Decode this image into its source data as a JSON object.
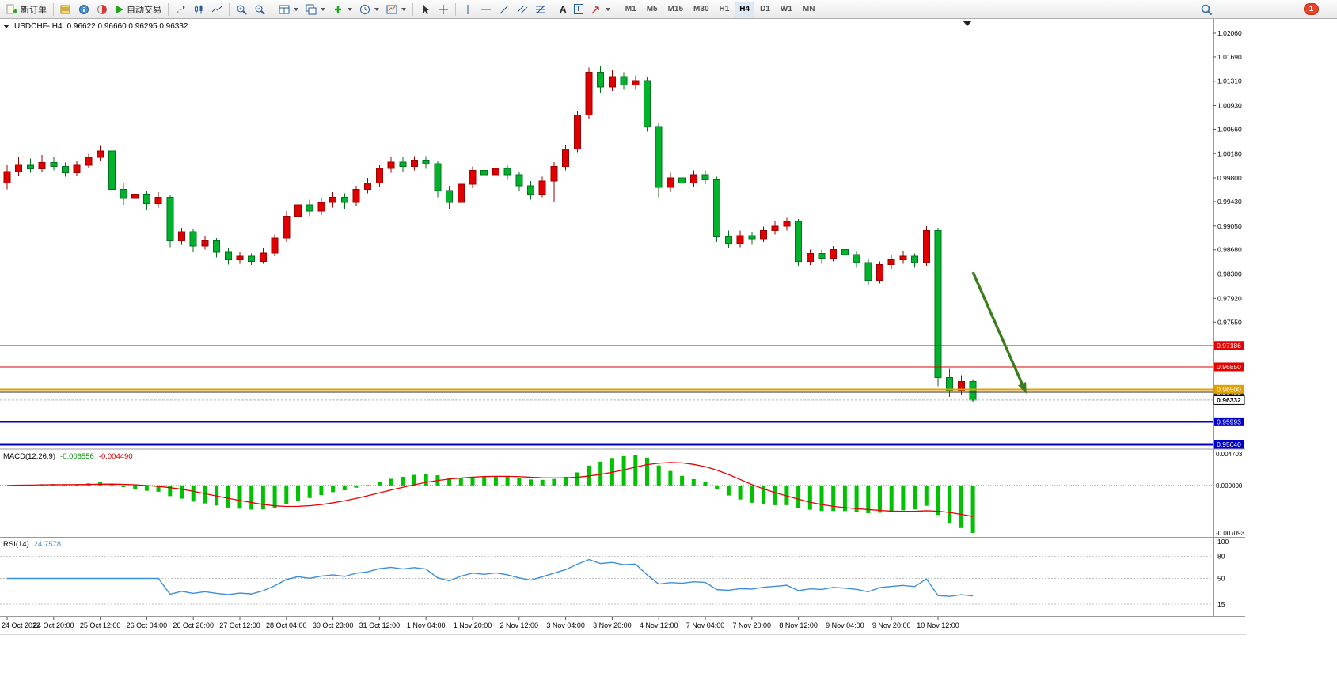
{
  "window": {
    "badge_count": "1"
  },
  "toolbar": {
    "new_order": "新订单",
    "autotrading": "自动交易",
    "text_tool": "A",
    "label_tool": "T",
    "timeframes": [
      "M1",
      "M5",
      "M15",
      "M30",
      "H1",
      "H4",
      "D1",
      "W1",
      "MN"
    ],
    "active_timeframe": "H4"
  },
  "chart": {
    "symbol_period": "USDCHF-,H4",
    "ohlc_text": "0.96622 0.96660 0.96295 0.96332",
    "macd_name": "MACD(12,26,9)",
    "macd_value": "-0.006556",
    "macd_signal_value": "-0.004490",
    "rsi_name": "RSI(14)",
    "rsi_value": "24.7578"
  },
  "chart_data": [
    {
      "type": "candlestick",
      "symbol": "USDCHF-",
      "period": "H4",
      "current_ohlc": {
        "open": 0.96622,
        "high": 0.9666,
        "low": 0.96295,
        "close": 0.96332
      },
      "up_color": "#e00000",
      "down_color": "#00b22c",
      "ylim": [
        0.95578,
        1.02282
      ],
      "price_axis_labels": [
        "1.02060",
        "1.01690",
        "1.01310",
        "1.00930",
        "1.00560",
        "1.00180",
        "0.99800",
        "0.99430",
        "0.99050",
        "0.98680",
        "0.98300",
        "0.97920",
        "0.97550"
      ],
      "time_axis_labels": [
        "24 Oct 2022",
        "24 Oct 20:00",
        "25 Oct 12:00",
        "26 Oct 04:00",
        "26 Oct 20:00",
        "27 Oct 12:00",
        "28 Oct 04:00",
        "30 Oct 23:00",
        "31 Oct 12:00",
        "1 Nov 04:00",
        "1 Nov 20:00",
        "2 Nov 12:00",
        "3 Nov 04:00",
        "3 Nov 20:00",
        "4 Nov 12:00",
        "7 Nov 04:00",
        "7 Nov 20:00",
        "8 Nov 12:00",
        "9 Nov 04:00",
        "9 Nov 20:00",
        "10 Nov 12:00"
      ],
      "candles_per_label": 4,
      "hlines": [
        {
          "price": 0.97186,
          "label": "0.97186",
          "color": "#e60000",
          "width": 1
        },
        {
          "price": 0.9685,
          "label": "0.96850",
          "color": "#e60000",
          "width": 1
        },
        {
          "price": 0.96455,
          "label": "0.96455",
          "color": "#2b2b2b",
          "width": 1
        },
        {
          "price": 0.965,
          "label": "0.96500",
          "color": "#dfa000",
          "width": 2
        },
        {
          "price": 0.95993,
          "label": "0.95993",
          "color": "#0000c8",
          "width": 2
        },
        {
          "price": 0.9564,
          "label": "0.95640",
          "color": "#0000c8",
          "width": 3
        }
      ],
      "current_price": 0.96332,
      "current_price_label": "0.96332",
      "trend_arrow": {
        "from_index": 83,
        "from_price": 0.9833,
        "to_index": 87.6,
        "to_price": 0.9643,
        "color": "#3a7d1e"
      },
      "candles": [
        [
          0.9972,
          1.0,
          0.9962,
          0.999
        ],
        [
          0.999,
          1.0012,
          0.9984,
          1.0
        ],
        [
          1.0,
          1.001,
          0.9988,
          0.9994
        ],
        [
          0.9994,
          1.0016,
          0.999,
          1.0004
        ],
        [
          1.0004,
          1.0012,
          0.9992,
          0.9998
        ],
        [
          0.9998,
          1.0004,
          0.9982,
          0.9988
        ],
        [
          0.9988,
          1.0006,
          0.9984,
          1.0
        ],
        [
          1.0,
          1.0018,
          0.9996,
          1.0012
        ],
        [
          1.0012,
          1.003,
          1.0006,
          1.0022
        ],
        [
          1.0022,
          1.0026,
          0.9952,
          0.9962
        ],
        [
          0.9962,
          0.9972,
          0.9938,
          0.9948
        ],
        [
          0.9948,
          0.9966,
          0.9942,
          0.9955
        ],
        [
          0.9955,
          0.996,
          0.993,
          0.994
        ],
        [
          0.994,
          0.9958,
          0.9934,
          0.995
        ],
        [
          0.995,
          0.9954,
          0.9872,
          0.9882
        ],
        [
          0.9882,
          0.9902,
          0.9876,
          0.9896
        ],
        [
          0.9896,
          0.99,
          0.9864,
          0.9874
        ],
        [
          0.9874,
          0.989,
          0.9868,
          0.9882
        ],
        [
          0.9882,
          0.9886,
          0.9856,
          0.9864
        ],
        [
          0.9864,
          0.987,
          0.9845,
          0.9852
        ],
        [
          0.9852,
          0.9864,
          0.9846,
          0.9858
        ],
        [
          0.9858,
          0.9862,
          0.9844,
          0.985
        ],
        [
          0.985,
          0.987,
          0.9846,
          0.9863
        ],
        [
          0.9863,
          0.9892,
          0.9858,
          0.9886
        ],
        [
          0.9886,
          0.9928,
          0.988,
          0.992
        ],
        [
          0.992,
          0.9944,
          0.9914,
          0.9938
        ],
        [
          0.9938,
          0.9946,
          0.992,
          0.9928
        ],
        [
          0.9928,
          0.9948,
          0.9922,
          0.9942
        ],
        [
          0.9942,
          0.9958,
          0.9934,
          0.995
        ],
        [
          0.995,
          0.9956,
          0.9932,
          0.9942
        ],
        [
          0.9942,
          0.9968,
          0.9936,
          0.9962
        ],
        [
          0.9962,
          0.998,
          0.9956,
          0.9972
        ],
        [
          0.9972,
          1.0,
          0.9966,
          0.9995
        ],
        [
          0.9995,
          1.0012,
          0.9988,
          1.0005
        ],
        [
          1.0005,
          1.0012,
          0.999,
          0.9998
        ],
        [
          0.9998,
          1.0014,
          0.9992,
          1.0008
        ],
        [
          1.0008,
          1.0014,
          0.9994,
          1.0002
        ],
        [
          1.0002,
          1.0006,
          0.995,
          0.996
        ],
        [
          0.996,
          0.9968,
          0.9932,
          0.9942
        ],
        [
          0.9942,
          0.9976,
          0.9936,
          0.997
        ],
        [
          0.997,
          0.9998,
          0.9964,
          0.9992
        ],
        [
          0.9992,
          1.0,
          0.9978,
          0.9985
        ],
        [
          0.9985,
          1.0002,
          0.998,
          0.9995
        ],
        [
          0.9995,
          1.0,
          0.9978,
          0.9985
        ],
        [
          0.9985,
          0.999,
          0.996,
          0.9968
        ],
        [
          0.9968,
          0.9975,
          0.9946,
          0.9955
        ],
        [
          0.9955,
          0.9982,
          0.995,
          0.9975
        ],
        [
          0.9975,
          1.0005,
          0.9942,
          0.9998
        ],
        [
          0.9998,
          1.0032,
          0.9992,
          1.0025
        ],
        [
          1.0025,
          1.0085,
          1.002,
          1.0078
        ],
        [
          1.0078,
          1.0152,
          1.0072,
          1.0145
        ],
        [
          1.0145,
          1.0155,
          1.0112,
          1.0122
        ],
        [
          1.0122,
          1.0148,
          1.0116,
          1.0138
        ],
        [
          1.0138,
          1.0145,
          1.0118,
          1.0125
        ],
        [
          1.0125,
          1.014,
          1.0118,
          1.0132
        ],
        [
          1.0132,
          1.0138,
          1.0052,
          1.006
        ],
        [
          1.006,
          1.0066,
          0.995,
          0.9965
        ],
        [
          0.9965,
          0.9988,
          0.9958,
          0.998
        ],
        [
          0.998,
          0.999,
          0.9964,
          0.9972
        ],
        [
          0.9972,
          0.9992,
          0.9966,
          0.9985
        ],
        [
          0.9985,
          0.9992,
          0.997,
          0.9978
        ],
        [
          0.9978,
          0.9982,
          0.988,
          0.9888
        ],
        [
          0.9888,
          0.9898,
          0.987,
          0.9878
        ],
        [
          0.9878,
          0.9898,
          0.9872,
          0.989
        ],
        [
          0.989,
          0.9896,
          0.9876,
          0.9885
        ],
        [
          0.9885,
          0.9904,
          0.988,
          0.9898
        ],
        [
          0.9898,
          0.9912,
          0.9892,
          0.9905
        ],
        [
          0.9905,
          0.9918,
          0.9898,
          0.9912
        ],
        [
          0.9912,
          0.9916,
          0.9842,
          0.985
        ],
        [
          0.985,
          0.9868,
          0.9844,
          0.9862
        ],
        [
          0.9862,
          0.9868,
          0.9846,
          0.9855
        ],
        [
          0.9855,
          0.9874,
          0.985,
          0.9868
        ],
        [
          0.9868,
          0.9874,
          0.9852,
          0.986
        ],
        [
          0.986,
          0.9866,
          0.984,
          0.9848
        ],
        [
          0.9848,
          0.9854,
          0.9812,
          0.982
        ],
        [
          0.982,
          0.985,
          0.9815,
          0.9845
        ],
        [
          0.9845,
          0.986,
          0.9838,
          0.9852
        ],
        [
          0.9852,
          0.9865,
          0.9846,
          0.9858
        ],
        [
          0.9858,
          0.9862,
          0.984,
          0.9848
        ],
        [
          0.9848,
          0.9905,
          0.9842,
          0.9898
        ],
        [
          0.9898,
          0.9902,
          0.9655,
          0.9668
        ],
        [
          0.9668,
          0.9682,
          0.9638,
          0.9648
        ],
        [
          0.9648,
          0.9672,
          0.9642,
          0.9662
        ],
        [
          0.96622,
          0.9666,
          0.96295,
          0.96332
        ]
      ]
    },
    {
      "type": "macd",
      "label": "MACD(12,26,9)",
      "fast": 12,
      "slow": 26,
      "signal": 9,
      "current_macd": -0.006556,
      "current_signal": -0.00449,
      "ylim": [
        -0.007093,
        0.004703
      ],
      "scale_labels": [
        {
          "v": 0.004703,
          "t": "0.004703"
        },
        {
          "v": 0,
          "t": "0.000000"
        },
        {
          "v": -0.007093,
          "t": "-0.007093"
        }
      ],
      "histogram_color": "#00c200",
      "signal_color": "#e80000"
    },
    {
      "type": "rsi",
      "label": "RSI(14)",
      "period": 14,
      "current": 24.7578,
      "ylim": [
        0,
        100
      ],
      "levels": [
        80,
        50,
        15
      ],
      "scale_labels": [
        {
          "v": 100,
          "t": "100"
        },
        {
          "v": 80,
          "t": "80"
        },
        {
          "v": 50,
          "t": "50"
        },
        {
          "v": 15,
          "t": "15"
        }
      ],
      "line_color": "#3c8fd9"
    }
  ]
}
